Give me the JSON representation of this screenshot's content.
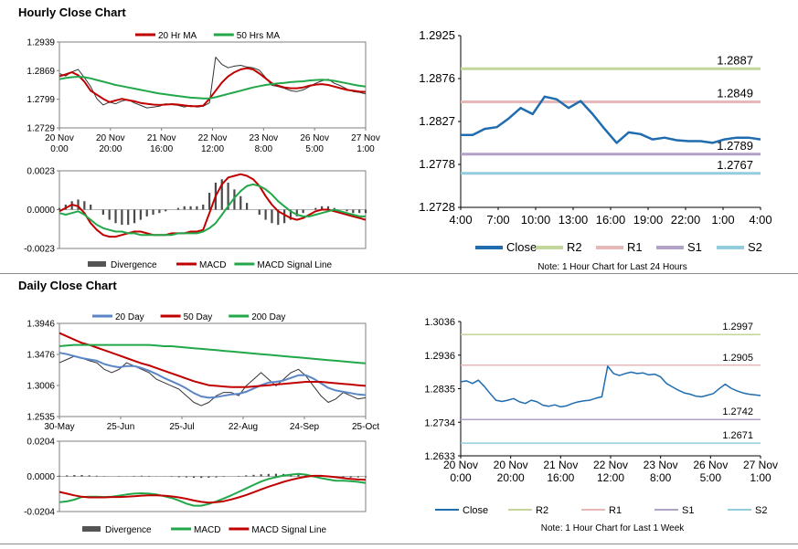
{
  "sections": {
    "hourly_title": "Hourly Close Chart",
    "daily_title": "Daily Close Chart"
  },
  "chart_data": [
    {
      "id": "hourly-price",
      "type": "line",
      "title": "Hourly Close Chart",
      "y_ticks": [
        "1.2939",
        "1.2869",
        "1.2799",
        "1.2729"
      ],
      "ylim": [
        1.2729,
        1.2939
      ],
      "x_ticks": [
        "20 Nov 0:00",
        "20 Nov 20:00",
        "21 Nov 16:00",
        "22 Nov 12:00",
        "23 Nov 8:00",
        "26 Nov 5:00",
        "27 Nov 1:00"
      ],
      "legend": [
        {
          "name": "20 Hr MA",
          "color": "#c00000"
        },
        {
          "name": "50 Hrs MA",
          "color": "#22a84a"
        }
      ],
      "series": [
        {
          "name": "Close",
          "color": "#333333",
          "values": [
            1.2862,
            1.2856,
            1.2866,
            1.2872,
            1.2852,
            1.283,
            1.28,
            1.2785,
            1.2792,
            1.2788,
            1.2795,
            1.2798,
            1.279,
            1.2784,
            1.2778,
            1.278,
            1.2782,
            1.2788,
            1.2786,
            1.2784,
            1.278,
            1.2784,
            1.278,
            1.2782,
            1.279,
            1.2902,
            1.2884,
            1.2876,
            1.288,
            1.2882,
            1.2878,
            1.2876,
            1.287,
            1.2852,
            1.2833,
            1.283,
            1.2826,
            1.282,
            1.2818,
            1.2822,
            1.283,
            1.2838,
            1.2844,
            1.2848,
            1.2838,
            1.2832,
            1.2824,
            1.2818,
            1.2816,
            1.2812
          ]
        },
        {
          "name": "20 Hr MA",
          "color": "#c00000",
          "values": [
            1.2855,
            1.286,
            1.2865,
            1.2858,
            1.2842,
            1.282,
            1.281,
            1.28,
            1.2792,
            1.2796,
            1.28,
            1.2797,
            1.2794,
            1.279,
            1.2788,
            1.2786,
            1.2785,
            1.2786,
            1.2787,
            1.2786,
            1.2784,
            1.2782,
            1.2782,
            1.2783,
            1.28,
            1.282,
            1.284,
            1.2855,
            1.2865,
            1.2872,
            1.2875,
            1.2872,
            1.2862,
            1.285,
            1.2838,
            1.2832,
            1.2828,
            1.2826,
            1.2826,
            1.2828,
            1.2832,
            1.2835,
            1.2836,
            1.2834,
            1.283,
            1.2826,
            1.2822,
            1.282,
            1.2818,
            1.2817
          ]
        },
        {
          "name": "50 Hrs MA",
          "color": "#22a84a",
          "values": [
            1.2848,
            1.2851,
            1.2853,
            1.2854,
            1.2853,
            1.285,
            1.2846,
            1.2842,
            1.2838,
            1.2834,
            1.2831,
            1.2828,
            1.2825,
            1.2822,
            1.2819,
            1.2816,
            1.2813,
            1.2811,
            1.2809,
            1.2807,
            1.2805,
            1.2803,
            1.2802,
            1.2801,
            1.2801,
            1.2804,
            1.2808,
            1.2812,
            1.2816,
            1.282,
            1.2824,
            1.2828,
            1.2831,
            1.2834,
            1.2836,
            1.2838,
            1.2839,
            1.2841,
            1.2842,
            1.2843,
            1.2845,
            1.2846,
            1.2847,
            1.2846,
            1.2844,
            1.2841,
            1.2838,
            1.2835,
            1.2832,
            1.283
          ]
        }
      ]
    },
    {
      "id": "hourly-macd",
      "type": "line",
      "y_ticks": [
        "0.0023",
        "0.0000",
        "-0.0023"
      ],
      "ylim": [
        -0.0023,
        0.0023
      ],
      "legend": [
        {
          "name": "Divergence",
          "color": "#555555"
        },
        {
          "name": "MACD",
          "color": "#c00000"
        },
        {
          "name": "MACD Signal Line",
          "color": "#22a84a"
        }
      ],
      "divergence": [
        0.0001,
        0.0003,
        0.0005,
        0.0006,
        0.0005,
        0.0003,
        0.0,
        -0.0003,
        -0.0006,
        -0.0008,
        -0.0009,
        -0.0009,
        -0.0008,
        -0.0006,
        -0.0004,
        -0.0003,
        -0.0002,
        -0.0001,
        0.0,
        0.0001,
        0.0002,
        0.0002,
        0.0002,
        0.0003,
        0.001,
        0.0016,
        0.0018,
        0.0016,
        0.0012,
        0.0008,
        0.0004,
        0.0,
        -0.0003,
        -0.0006,
        -0.0008,
        -0.0009,
        -0.0008,
        -0.0006,
        -0.0004,
        -0.0002,
        0.0,
        0.0001,
        0.0002,
        0.0002,
        0.0001,
        0.0,
        -0.0001,
        -0.0002,
        -0.0002,
        -0.0002
      ],
      "series": [
        {
          "name": "MACD",
          "color": "#c00000",
          "values": [
            -0.0001,
            0.0001,
            0.0003,
            0.0002,
            -0.0002,
            -0.0008,
            -0.0012,
            -0.0015,
            -0.0016,
            -0.0016,
            -0.0015,
            -0.0014,
            -0.0013,
            -0.0013,
            -0.0014,
            -0.0015,
            -0.0015,
            -0.0015,
            -0.0014,
            -0.0014,
            -0.0014,
            -0.0013,
            -0.0013,
            -0.0012,
            -0.0002,
            0.0008,
            0.0015,
            0.0019,
            0.002,
            0.0021,
            0.002,
            0.0018,
            0.0014,
            0.0008,
            0.0003,
            -0.0001,
            -0.0003,
            -0.0005,
            -0.0006,
            -0.0005,
            -0.0003,
            -0.0001,
            0.0,
            0.0,
            -0.0001,
            -0.0002,
            -0.0003,
            -0.0004,
            -0.0005,
            -0.0006
          ]
        },
        {
          "name": "MACD Signal Line",
          "color": "#22a84a",
          "values": [
            -0.0002,
            -0.0003,
            -0.0002,
            -0.0001,
            -0.0003,
            -0.0006,
            -0.0009,
            -0.0011,
            -0.0012,
            -0.0013,
            -0.0013,
            -0.0014,
            -0.0014,
            -0.0015,
            -0.0015,
            -0.0015,
            -0.0015,
            -0.0015,
            -0.0015,
            -0.0014,
            -0.0014,
            -0.0014,
            -0.0014,
            -0.0013,
            -0.0011,
            -0.0008,
            -0.0003,
            0.0002,
            0.0007,
            0.0011,
            0.0014,
            0.0015,
            0.0014,
            0.0012,
            0.0009,
            0.0005,
            0.0002,
            -0.0001,
            -0.0003,
            -0.0004,
            -0.0004,
            -0.0003,
            -0.0002,
            -0.0001,
            0.0,
            -0.0001,
            -0.0002,
            -0.0003,
            -0.0004,
            -0.0004
          ]
        }
      ]
    },
    {
      "id": "hourly-pivot",
      "type": "line",
      "y_ticks": [
        "1.2925",
        "1.2876",
        "1.2827",
        "1.2778",
        "1.2728"
      ],
      "ylim": [
        1.2728,
        1.2925
      ],
      "x_ticks": [
        "4:00",
        "7:00",
        "10:00",
        "13:00",
        "16:00",
        "19:00",
        "22:00",
        "1:00",
        "4:00"
      ],
      "levels": [
        {
          "name": "R2",
          "value": 1.2887,
          "label": "1.2887",
          "color": "#c3d69b"
        },
        {
          "name": "R1",
          "value": 1.2849,
          "label": "1.2849",
          "color": "#e6b9b8"
        },
        {
          "name": "S1",
          "value": 1.2789,
          "label": "1.2789",
          "color": "#b3a2c7"
        },
        {
          "name": "S2",
          "value": 1.2767,
          "label": "1.2767",
          "color": "#93cddd"
        }
      ],
      "series": [
        {
          "name": "Close",
          "color": "#1f6cb0",
          "values": [
            1.2811,
            1.2811,
            1.2818,
            1.282,
            1.283,
            1.2842,
            1.2835,
            1.2855,
            1.2852,
            1.2842,
            1.285,
            1.2835,
            1.2818,
            1.2802,
            1.2814,
            1.2812,
            1.2806,
            1.2808,
            1.2805,
            1.2804,
            1.2804,
            1.2802,
            1.2806,
            1.2808,
            1.2808,
            1.2806
          ]
        }
      ],
      "legend": [
        "Close",
        "R2",
        "R1",
        "S1",
        "S2"
      ],
      "note": "Note: 1 Hour Chart for Last 24 Hours"
    },
    {
      "id": "daily-price",
      "type": "line",
      "title": "Daily Close Chart",
      "y_ticks": [
        "1.3946",
        "1.3476",
        "1.3006",
        "1.2535"
      ],
      "ylim": [
        1.2535,
        1.3946
      ],
      "x_ticks": [
        "30-May",
        "25-Jun",
        "25-Jul",
        "22-Aug",
        "24-Sep",
        "25-Oct"
      ],
      "legend": [
        {
          "name": "20 Day",
          "color": "#5b86c5"
        },
        {
          "name": "50 Day",
          "color": "#c00000"
        },
        {
          "name": "200 Day",
          "color": "#22a84a"
        }
      ],
      "series": [
        {
          "name": "Close",
          "color": "#333333",
          "values": [
            1.335,
            1.34,
            1.345,
            1.342,
            1.338,
            1.335,
            1.325,
            1.32,
            1.325,
            1.335,
            1.33,
            1.325,
            1.32,
            1.31,
            1.305,
            1.3,
            1.295,
            1.285,
            1.275,
            1.27,
            1.275,
            1.285,
            1.29,
            1.29,
            1.285,
            1.3,
            1.31,
            1.32,
            1.31,
            1.3,
            1.31,
            1.32,
            1.325,
            1.315,
            1.3,
            1.285,
            1.275,
            1.28,
            1.29,
            1.285,
            1.28,
            1.282
          ]
        },
        {
          "name": "20 Day",
          "color": "#5b86c5",
          "values": [
            1.35,
            1.348,
            1.345,
            1.342,
            1.34,
            1.338,
            1.333,
            1.33,
            1.328,
            1.33,
            1.33,
            1.327,
            1.323,
            1.318,
            1.312,
            1.307,
            1.302,
            1.296,
            1.289,
            1.284,
            1.282,
            1.283,
            1.285,
            1.287,
            1.288,
            1.291,
            1.296,
            1.301,
            1.305,
            1.306,
            1.308,
            1.312,
            1.316,
            1.316,
            1.311,
            1.304,
            1.297,
            1.293,
            1.291,
            1.289,
            1.287,
            1.286
          ]
        },
        {
          "name": "50 Day",
          "color": "#c00000",
          "values": [
            1.38,
            1.375,
            1.37,
            1.365,
            1.362,
            1.358,
            1.354,
            1.35,
            1.346,
            1.342,
            1.338,
            1.334,
            1.331,
            1.327,
            1.323,
            1.319,
            1.315,
            1.311,
            1.307,
            1.304,
            1.301,
            1.3,
            1.299,
            1.298,
            1.298,
            1.298,
            1.299,
            1.3,
            1.301,
            1.302,
            1.303,
            1.304,
            1.305,
            1.306,
            1.306,
            1.306,
            1.305,
            1.304,
            1.303,
            1.302,
            1.301,
            1.3
          ]
        },
        {
          "name": "200 Day",
          "color": "#22a84a",
          "values": [
            1.36,
            1.361,
            1.362,
            1.362,
            1.362,
            1.362,
            1.362,
            1.362,
            1.362,
            1.362,
            1.362,
            1.362,
            1.362,
            1.361,
            1.36,
            1.36,
            1.359,
            1.358,
            1.357,
            1.356,
            1.355,
            1.354,
            1.353,
            1.352,
            1.351,
            1.35,
            1.349,
            1.348,
            1.347,
            1.346,
            1.345,
            1.344,
            1.343,
            1.342,
            1.341,
            1.34,
            1.339,
            1.338,
            1.337,
            1.336,
            1.335,
            1.334
          ]
        }
      ]
    },
    {
      "id": "daily-macd",
      "type": "line",
      "y_ticks": [
        "0.0204",
        "0.0000",
        "-0.0204"
      ],
      "ylim": [
        -0.0204,
        0.0204
      ],
      "legend": [
        {
          "name": "Divergence",
          "color": "#555555"
        },
        {
          "name": "MACD",
          "color": "#22a84a"
        },
        {
          "name": "MACD Signal Line",
          "color": "#c00000"
        }
      ],
      "divergence": [
        0.0004,
        0.0006,
        0.0008,
        0.0008,
        0.0006,
        0.0004,
        0.0002,
        0.0,
        -0.0002,
        0.0001,
        0.0003,
        0.0004,
        0.0003,
        0.0001,
        -0.0001,
        -0.0003,
        -0.0005,
        -0.0006,
        -0.0008,
        -0.0009,
        -0.0008,
        -0.0006,
        -0.0003,
        0.0,
        0.0003,
        0.0006,
        0.0009,
        0.0012,
        0.0014,
        0.0015,
        0.0014,
        0.0012,
        0.001,
        0.0006,
        0.0002,
        -0.0002,
        -0.0005,
        -0.0007,
        -0.0008,
        -0.0007,
        -0.0006,
        -0.0005
      ],
      "series": [
        {
          "name": "MACD",
          "color": "#22a84a",
          "values": [
            -0.015,
            -0.0145,
            -0.0135,
            -0.012,
            -0.0118,
            -0.0118,
            -0.012,
            -0.0118,
            -0.0112,
            -0.0105,
            -0.01,
            -0.0098,
            -0.01,
            -0.0105,
            -0.0115,
            -0.0125,
            -0.014,
            -0.0158,
            -0.017,
            -0.017,
            -0.016,
            -0.0145,
            -0.0128,
            -0.011,
            -0.009,
            -0.007,
            -0.005,
            -0.003,
            -0.0015,
            -0.0005,
            0.0005,
            0.001,
            0.0015,
            0.001,
            0.0,
            -0.001,
            -0.0018,
            -0.0025,
            -0.0025,
            -0.0028,
            -0.0032,
            -0.0038
          ]
        },
        {
          "name": "MACD Signal Line",
          "color": "#c00000",
          "values": [
            -0.009,
            -0.01,
            -0.011,
            -0.0118,
            -0.0122,
            -0.0122,
            -0.0122,
            -0.012,
            -0.012,
            -0.0118,
            -0.0115,
            -0.0112,
            -0.011,
            -0.011,
            -0.0112,
            -0.0116,
            -0.0122,
            -0.013,
            -0.014,
            -0.0148,
            -0.0152,
            -0.015,
            -0.0144,
            -0.0134,
            -0.0122,
            -0.0108,
            -0.0092,
            -0.0076,
            -0.006,
            -0.0046,
            -0.0032,
            -0.002,
            -0.001,
            -0.0002,
            0.0003,
            0.0003,
            0.0,
            -0.0005,
            -0.001,
            -0.0015,
            -0.0018,
            -0.002
          ]
        }
      ]
    },
    {
      "id": "daily-pivot",
      "type": "line",
      "y_ticks": [
        "1.3036",
        "1.2936",
        "1.2835",
        "1.2734",
        "1.2633"
      ],
      "ylim": [
        1.2633,
        1.3036
      ],
      "x_ticks": [
        "20 Nov 0:00",
        "20 Nov 20:00",
        "21 Nov 16:00",
        "22 Nov 12:00",
        "23 Nov 8:00",
        "26 Nov 5:00",
        "27 Nov 1:00"
      ],
      "levels": [
        {
          "name": "R2",
          "value": 1.2997,
          "label": "1.2997",
          "color": "#c3d69b"
        },
        {
          "name": "R1",
          "value": 1.2905,
          "label": "1.2905",
          "color": "#e6b9b8"
        },
        {
          "name": "S1",
          "value": 1.2742,
          "label": "1.2742",
          "color": "#b3a2c7"
        },
        {
          "name": "S2",
          "value": 1.2671,
          "label": "1.2671",
          "color": "#93cddd"
        }
      ],
      "series": [
        {
          "name": "Close",
          "color": "#1f6cb0",
          "values": [
            1.2855,
            1.2858,
            1.285,
            1.286,
            1.2842,
            1.282,
            1.28,
            1.2796,
            1.28,
            1.2805,
            1.2795,
            1.279,
            1.28,
            1.2795,
            1.2785,
            1.2782,
            1.2786,
            1.278,
            1.2783,
            1.279,
            1.2795,
            1.2798,
            1.28,
            1.2806,
            1.281,
            1.2902,
            1.288,
            1.2874,
            1.288,
            1.2884,
            1.288,
            1.2882,
            1.2876,
            1.2878,
            1.287,
            1.285,
            1.284,
            1.283,
            1.2822,
            1.2818,
            1.2812,
            1.281,
            1.2815,
            1.282,
            1.2835,
            1.2848,
            1.2836,
            1.2828,
            1.2822,
            1.2818,
            1.2816,
            1.2814
          ]
        }
      ],
      "legend": [
        "Close",
        "R2",
        "R1",
        "S1",
        "S2"
      ],
      "note": "Note: 1 Hour Chart for Last 1 Week"
    }
  ]
}
